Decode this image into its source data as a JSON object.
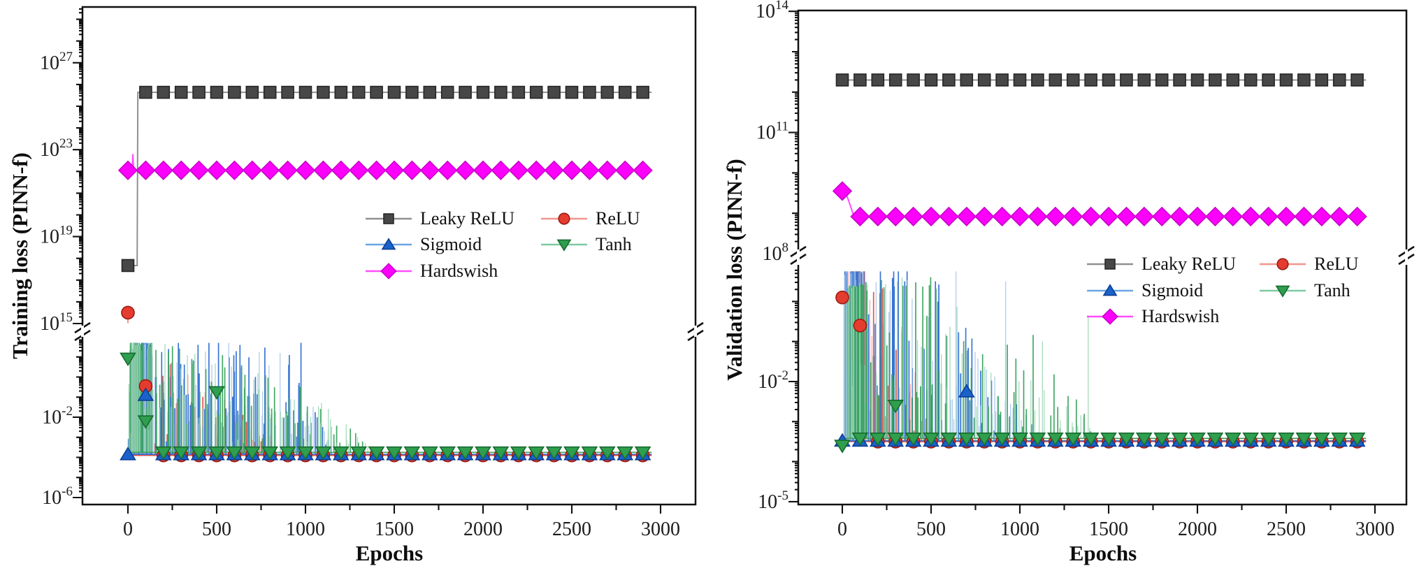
{
  "page": {
    "background": "#ffffff"
  },
  "chart_data": [
    {
      "id": "training-loss",
      "type": "line",
      "title": "",
      "xlabel": "Epochs",
      "ylabel": "Training loss (PINN-f)",
      "x_ticks": [
        0,
        500,
        1000,
        1500,
        2000,
        2500,
        3000
      ],
      "x_minor_interval": 250,
      "xlim": [
        -250,
        3200
      ],
      "grid": false,
      "y_axis": {
        "scale": "log",
        "broken": true,
        "upper_section": {
          "range_exp": [
            15,
            29.6
          ],
          "ticks": [
            {
              "base": "10",
              "exp": "27"
            },
            {
              "base": "10",
              "exp": "23"
            },
            {
              "base": "10",
              "exp": "19"
            },
            {
              "base": "10",
              "exp": "15"
            }
          ]
        },
        "lower_section": {
          "range_exp": [
            -6.3,
            1.97
          ],
          "ticks": [
            {
              "base": "10",
              "exp": "-2"
            },
            {
              "base": "10",
              "exp": "-6"
            }
          ]
        }
      },
      "legend": {
        "position": "center-right",
        "entries": [
          "Leaky ReLU",
          "ReLU",
          "Sigmoid",
          "Tanh",
          "Hardswish"
        ]
      },
      "series": [
        {
          "name": "Leaky ReLU",
          "marker": "square",
          "marker_color": "#474747",
          "marker_edge": "#262626",
          "line_color": "#909090",
          "line_log10_points": [
            [
              0,
              17.67
            ],
            [
              52,
              17.67
            ],
            [
              56,
              25.64
            ],
            [
              2950,
              25.64
            ]
          ],
          "marker_rule": {
            "from": 100,
            "to": 2900,
            "step": 100,
            "log10": 25.64
          },
          "extra_markers": [
            [
              0,
              17.67
            ]
          ]
        },
        {
          "name": "ReLU",
          "marker": "circle",
          "marker_color": "#e53c30",
          "marker_edge": "#9c1c12",
          "line_color": "#f0968e",
          "spike_colors": [
            "#dd4f46",
            "#f3a29c"
          ],
          "line_log10_points": [
            [
              0,
              15.5
            ],
            [
              0,
              15.02
            ]
          ],
          "noise": {
            "from": 12,
            "to": 900,
            "count": 70,
            "base_log10": -3.9,
            "seed": 11,
            "envelope_log10": [
              [
                12,
                1.1
              ],
              [
                250,
                0.7
              ],
              [
                500,
                -0.8
              ],
              [
                900,
                -3.6
              ]
            ],
            "burst": [
              15,
              120,
              28
            ]
          },
          "baseline": {
            "from": 12,
            "to": 2950,
            "log10": -3.9
          },
          "marker_rule": {
            "from": 200,
            "to": 2900,
            "step": 100,
            "log10": -3.9
          },
          "extra_markers": [
            [
              0,
              15.5
            ],
            [
              100,
              -0.45
            ]
          ]
        },
        {
          "name": "Sigmoid",
          "marker": "triangle-up",
          "marker_color": "#1b61ca",
          "marker_edge": "#0c3f96",
          "line_color": "#6ba4e2",
          "spike_colors": [
            "#2e6fd2",
            "#9dc1ec"
          ],
          "noise": {
            "from": 10,
            "to": 1150,
            "count": 130,
            "base_log10": -3.85,
            "seed": 7,
            "envelope_log10": [
              [
                10,
                1.75
              ],
              [
                550,
                1.75
              ],
              [
                900,
                1.3
              ],
              [
                1150,
                -3.5
              ]
            ],
            "burst": [
              12,
              130,
              45
            ],
            "extra_spikes": [
              [
                975,
                1.8
              ]
            ]
          },
          "baseline": {
            "from": 10,
            "to": 2950,
            "log10": -3.85
          },
          "marker_rule": {
            "from": 200,
            "to": 2900,
            "step": 100,
            "log10": -3.85
          },
          "extra_markers": [
            [
              0,
              -3.85
            ],
            [
              100,
              -0.9
            ]
          ]
        },
        {
          "name": "Tanh",
          "marker": "triangle-down",
          "marker_color": "#2f9e4e",
          "marker_edge": "#176b2f",
          "line_color": "#7ecaa2",
          "spike_colors": [
            "#3aa35e",
            "#93d2ae"
          ],
          "noise": {
            "from": 12,
            "to": 1380,
            "count": 150,
            "base_log10": -3.75,
            "seed": 23,
            "envelope_log10": [
              [
                12,
                1.85
              ],
              [
                350,
                1.55
              ],
              [
                650,
                0.85
              ],
              [
                1000,
                -0.6
              ],
              [
                1380,
                -3.5
              ]
            ],
            "burst": [
              14,
              135,
              38
            ]
          },
          "baseline": {
            "from": 12,
            "to": 2950,
            "log10": -3.75
          },
          "marker_rule": {
            "from": 200,
            "to": 2900,
            "step": 100,
            "log10": -3.75
          },
          "extra_markers": [
            [
              0,
              0.92
            ],
            [
              100,
              -2.2
            ],
            [
              500,
              -0.75
            ]
          ]
        },
        {
          "name": "Hardswish",
          "marker": "diamond",
          "marker_color": "#fb00fb",
          "marker_edge": "#c800c8",
          "line_color": "#ff4dff",
          "line_log10_points": [
            [
              0,
              22.05
            ],
            [
              24,
              22.05
            ],
            [
              28,
              22.8
            ],
            [
              32,
              22.05
            ],
            [
              2950,
              22.05
            ]
          ],
          "marker_rule": {
            "from": 0,
            "to": 2900,
            "step": 100,
            "log10": 22.05
          },
          "extra_markers": []
        }
      ]
    },
    {
      "id": "validation-loss",
      "type": "line",
      "title": "",
      "xlabel": "Epochs",
      "ylabel": "Validation loss (PINN-f)",
      "x_ticks": [
        0,
        500,
        1000,
        1500,
        2000,
        2500,
        3000
      ],
      "x_minor_interval": 250,
      "xlim": [
        -250,
        3200
      ],
      "grid": false,
      "y_axis": {
        "scale": "log",
        "broken": true,
        "upper_section": {
          "range_exp": [
            8,
            14.02
          ],
          "ticks": [
            {
              "base": "10",
              "exp": "14"
            },
            {
              "base": "10",
              "exp": "11"
            },
            {
              "base": "10",
              "exp": "8"
            }
          ]
        },
        "lower_section": {
          "range_exp": [
            -5.07,
            0.86
          ],
          "ticks": [
            {
              "base": "10",
              "exp": "-2"
            },
            {
              "base": "10",
              "exp": "-5"
            }
          ]
        }
      },
      "legend": {
        "position": "center-right",
        "entries": [
          "Leaky ReLU",
          "ReLU",
          "Sigmoid",
          "Tanh",
          "Hardswish"
        ]
      },
      "series": [
        {
          "name": "Leaky ReLU",
          "marker": "square",
          "marker_color": "#474747",
          "marker_edge": "#262626",
          "line_color": "#909090",
          "line_log10_points": [
            [
              0,
              12.3
            ],
            [
              2950,
              12.3
            ]
          ],
          "marker_rule": {
            "from": 0,
            "to": 2900,
            "step": 100,
            "log10": 12.3
          },
          "extra_markers": []
        },
        {
          "name": "ReLU",
          "marker": "circle",
          "marker_color": "#e53c30",
          "marker_edge": "#9c1c12",
          "line_color": "#f0968e",
          "spike_colors": [
            "#dd4f46",
            "#f3a29c"
          ],
          "noise": {
            "from": 10,
            "to": 520,
            "count": 55,
            "base_log10": -3.5,
            "seed": 41,
            "envelope_log10": [
              [
                10,
                0.9
              ],
              [
                130,
                0.85
              ],
              [
                300,
                0.0
              ],
              [
                520,
                -3.3
              ]
            ],
            "burst": [
              15,
              130,
              30
            ]
          },
          "baseline": {
            "from": 10,
            "to": 2950,
            "log10": -3.5
          },
          "marker_rule": {
            "from": 200,
            "to": 2900,
            "step": 100,
            "log10": -3.5
          },
          "extra_markers": [
            [
              0,
              0.1
            ],
            [
              100,
              -0.6
            ]
          ]
        },
        {
          "name": "Sigmoid",
          "marker": "triangle-up",
          "marker_color": "#1b61ca",
          "marker_edge": "#0c3f96",
          "line_color": "#6ba4e2",
          "spike_colors": [
            "#2e6fd2",
            "#9dc1ec"
          ],
          "noise": {
            "from": 10,
            "to": 1120,
            "count": 100,
            "base_log10": -3.48,
            "seed": 5,
            "envelope_log10": [
              [
                10,
                0.92
              ],
              [
                420,
                0.92
              ],
              [
                600,
                0.2
              ],
              [
                820,
                -1.6
              ],
              [
                1120,
                -3.3
              ]
            ],
            "burst": [
              12,
              125,
              35
            ],
            "extra_spikes": [
              [
                920,
                0.5
              ],
              [
                640,
                0.9
              ]
            ]
          },
          "baseline": {
            "from": 10,
            "to": 2950,
            "log10": -3.48
          },
          "marker_rule": {
            "from": 100,
            "to": 2900,
            "step": 100,
            "log10": -3.48
          },
          "extra_markers": [
            [
              0,
              -3.48
            ],
            [
              700,
              -2.25
            ]
          ]
        },
        {
          "name": "Tanh",
          "marker": "triangle-down",
          "marker_color": "#2f9e4e",
          "marker_edge": "#176b2f",
          "line_color": "#7ecaa2",
          "spike_colors": [
            "#3aa35e",
            "#93d2ae"
          ],
          "noise": {
            "from": 15,
            "to": 1430,
            "count": 110,
            "base_log10": -3.42,
            "seed": 29,
            "envelope_log10": [
              [
                15,
                0.4
              ],
              [
                430,
                0.78
              ],
              [
                560,
                0.55
              ],
              [
                800,
                -1.3
              ],
              [
                1080,
                -0.6
              ],
              [
                1430,
                -3.3
              ]
            ],
            "burst": [
              25,
              140,
              25
            ],
            "extra_spikes": [
              [
                1385,
                -0.35
              ]
            ]
          },
          "baseline": {
            "from": 15,
            "to": 2950,
            "log10": -3.42
          },
          "marker_rule": {
            "from": 100,
            "to": 2900,
            "step": 100,
            "log10": -3.42
          },
          "extra_markers": [
            [
              0,
              -3.6
            ],
            [
              300,
              -2.6
            ]
          ]
        },
        {
          "name": "Hardswish",
          "marker": "diamond",
          "marker_color": "#fb00fb",
          "marker_edge": "#c800c8",
          "line_color": "#ff4dff",
          "line_log10_points": [
            [
              0,
              9.55
            ],
            [
              25,
              9.45
            ],
            [
              60,
              9.0
            ],
            [
              95,
              8.92
            ],
            [
              2950,
              8.92
            ]
          ],
          "marker_rule": {
            "from": 100,
            "to": 2900,
            "step": 100,
            "log10": 8.92
          },
          "extra_markers": [
            [
              0,
              9.55
            ]
          ]
        }
      ]
    }
  ]
}
